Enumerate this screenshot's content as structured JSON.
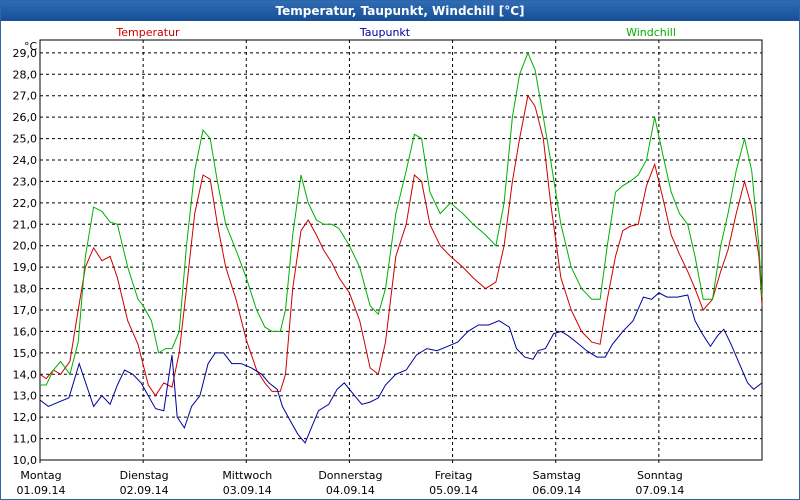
{
  "window": {
    "title": "Temperatur, Taupunkt, Windchill [°C]"
  },
  "chart_data": {
    "type": "line",
    "title": "Temperatur, Taupunkt, Windchill [°C]",
    "ylabel": "°C",
    "ylim": [
      10.0,
      29.6
    ],
    "yticks": [
      "10,0",
      "11,0",
      "12,0",
      "13,0",
      "14,0",
      "15,0",
      "16,0",
      "17,0",
      "18,0",
      "19,0",
      "20,0",
      "21,0",
      "22,0",
      "23,0",
      "24,0",
      "25,0",
      "26,0",
      "27,0",
      "28,0",
      "29,0"
    ],
    "grid": true,
    "xlim": [
      0,
      7
    ],
    "days": [
      {
        "weekday": "Montag",
        "date": "01.09.14"
      },
      {
        "weekday": "Dienstag",
        "date": "02.09.14"
      },
      {
        "weekday": "Mittwoch",
        "date": "03.09.14"
      },
      {
        "weekday": "Donnerstag",
        "date": "04.09.14"
      },
      {
        "weekday": "Freitag",
        "date": "05.09.14"
      },
      {
        "weekday": "Samstag",
        "date": "06.09.14"
      },
      {
        "weekday": "Sonntag",
        "date": "07.09.14"
      }
    ],
    "series": [
      {
        "name": "Temperatur",
        "color": "#cc0000",
        "points": [
          [
            0.0,
            14.0
          ],
          [
            0.06,
            13.8
          ],
          [
            0.13,
            14.2
          ],
          [
            0.2,
            14.0
          ],
          [
            0.29,
            14.6
          ],
          [
            0.37,
            17.0
          ],
          [
            0.44,
            19.0
          ],
          [
            0.52,
            19.9
          ],
          [
            0.6,
            19.3
          ],
          [
            0.68,
            19.5
          ],
          [
            0.75,
            18.5
          ],
          [
            0.85,
            16.5
          ],
          [
            0.95,
            15.4
          ],
          [
            1.05,
            13.5
          ],
          [
            1.12,
            13.0
          ],
          [
            1.2,
            13.6
          ],
          [
            1.28,
            13.4
          ],
          [
            1.35,
            15.0
          ],
          [
            1.42,
            18.0
          ],
          [
            1.5,
            21.5
          ],
          [
            1.58,
            23.3
          ],
          [
            1.65,
            23.1
          ],
          [
            1.72,
            21.0
          ],
          [
            1.8,
            19.0
          ],
          [
            1.9,
            17.5
          ],
          [
            2.0,
            15.6
          ],
          [
            2.1,
            14.2
          ],
          [
            2.18,
            13.6
          ],
          [
            2.25,
            13.2
          ],
          [
            2.33,
            13.2
          ],
          [
            2.38,
            14.0
          ],
          [
            2.45,
            18.0
          ],
          [
            2.53,
            20.7
          ],
          [
            2.6,
            21.2
          ],
          [
            2.68,
            20.5
          ],
          [
            2.75,
            19.8
          ],
          [
            2.83,
            19.2
          ],
          [
            2.9,
            18.5
          ],
          [
            3.0,
            17.8
          ],
          [
            3.1,
            16.5
          ],
          [
            3.2,
            14.3
          ],
          [
            3.28,
            14.0
          ],
          [
            3.35,
            15.5
          ],
          [
            3.45,
            19.5
          ],
          [
            3.55,
            21.0
          ],
          [
            3.63,
            23.3
          ],
          [
            3.7,
            23.0
          ],
          [
            3.78,
            21.0
          ],
          [
            3.88,
            20.0
          ],
          [
            3.98,
            19.5
          ],
          [
            4.1,
            19.0
          ],
          [
            4.2,
            18.5
          ],
          [
            4.32,
            18.0
          ],
          [
            4.42,
            18.3
          ],
          [
            4.5,
            20.0
          ],
          [
            4.58,
            23.0
          ],
          [
            4.65,
            25.0
          ],
          [
            4.73,
            27.0
          ],
          [
            4.8,
            26.5
          ],
          [
            4.88,
            25.0
          ],
          [
            4.95,
            22.0
          ],
          [
            5.05,
            18.5
          ],
          [
            5.15,
            17.0
          ],
          [
            5.25,
            16.0
          ],
          [
            5.35,
            15.5
          ],
          [
            5.43,
            15.4
          ],
          [
            5.5,
            17.5
          ],
          [
            5.58,
            19.5
          ],
          [
            5.65,
            20.7
          ],
          [
            5.72,
            20.9
          ],
          [
            5.8,
            21.0
          ],
          [
            5.88,
            22.8
          ],
          [
            5.96,
            23.8
          ],
          [
            6.05,
            22.0
          ],
          [
            6.12,
            20.5
          ],
          [
            6.2,
            19.6
          ],
          [
            6.28,
            18.8
          ],
          [
            6.35,
            18.0
          ],
          [
            6.43,
            17.0
          ],
          [
            6.52,
            17.5
          ],
          [
            6.6,
            18.8
          ],
          [
            6.67,
            19.8
          ],
          [
            6.75,
            21.5
          ],
          [
            6.83,
            23.0
          ],
          [
            6.9,
            21.8
          ],
          [
            6.97,
            19.5
          ],
          [
            7.0,
            17.2
          ]
        ]
      },
      {
        "name": "Taupunkt",
        "color": "#00009c",
        "points": [
          [
            0.0,
            12.8
          ],
          [
            0.08,
            12.5
          ],
          [
            0.18,
            12.7
          ],
          [
            0.28,
            12.9
          ],
          [
            0.38,
            14.5
          ],
          [
            0.45,
            13.5
          ],
          [
            0.52,
            12.5
          ],
          [
            0.6,
            13.0
          ],
          [
            0.68,
            12.6
          ],
          [
            0.75,
            13.5
          ],
          [
            0.82,
            14.2
          ],
          [
            0.9,
            14.0
          ],
          [
            0.98,
            13.6
          ],
          [
            1.05,
            13.0
          ],
          [
            1.12,
            12.4
          ],
          [
            1.2,
            12.3
          ],
          [
            1.28,
            14.9
          ],
          [
            1.33,
            12.0
          ],
          [
            1.4,
            11.5
          ],
          [
            1.47,
            12.5
          ],
          [
            1.55,
            13.0
          ],
          [
            1.63,
            14.5
          ],
          [
            1.7,
            15.0
          ],
          [
            1.78,
            15.0
          ],
          [
            1.86,
            14.5
          ],
          [
            1.95,
            14.5
          ],
          [
            2.05,
            14.3
          ],
          [
            2.15,
            14.0
          ],
          [
            2.22,
            13.6
          ],
          [
            2.3,
            13.3
          ],
          [
            2.35,
            12.5
          ],
          [
            2.43,
            11.8
          ],
          [
            2.5,
            11.2
          ],
          [
            2.57,
            10.8
          ],
          [
            2.63,
            11.5
          ],
          [
            2.7,
            12.3
          ],
          [
            2.8,
            12.6
          ],
          [
            2.88,
            13.3
          ],
          [
            2.95,
            13.6
          ],
          [
            3.05,
            13.0
          ],
          [
            3.12,
            12.6
          ],
          [
            3.2,
            12.7
          ],
          [
            3.28,
            12.9
          ],
          [
            3.35,
            13.5
          ],
          [
            3.45,
            14.0
          ],
          [
            3.55,
            14.2
          ],
          [
            3.65,
            14.9
          ],
          [
            3.75,
            15.2
          ],
          [
            3.85,
            15.1
          ],
          [
            3.95,
            15.3
          ],
          [
            4.05,
            15.5
          ],
          [
            4.15,
            16.0
          ],
          [
            4.25,
            16.3
          ],
          [
            4.35,
            16.3
          ],
          [
            4.45,
            16.5
          ],
          [
            4.55,
            16.2
          ],
          [
            4.62,
            15.2
          ],
          [
            4.7,
            14.8
          ],
          [
            4.78,
            14.7
          ],
          [
            4.83,
            15.1
          ],
          [
            4.9,
            15.2
          ],
          [
            4.98,
            15.9
          ],
          [
            5.05,
            16.0
          ],
          [
            5.12,
            15.8
          ],
          [
            5.2,
            15.5
          ],
          [
            5.3,
            15.1
          ],
          [
            5.4,
            14.8
          ],
          [
            5.48,
            14.8
          ],
          [
            5.55,
            15.4
          ],
          [
            5.65,
            16.0
          ],
          [
            5.75,
            16.5
          ],
          [
            5.85,
            17.6
          ],
          [
            5.93,
            17.5
          ],
          [
            6.0,
            17.8
          ],
          [
            6.08,
            17.6
          ],
          [
            6.18,
            17.6
          ],
          [
            6.28,
            17.7
          ],
          [
            6.35,
            16.5
          ],
          [
            6.42,
            15.9
          ],
          [
            6.5,
            15.3
          ],
          [
            6.57,
            15.8
          ],
          [
            6.63,
            16.1
          ],
          [
            6.7,
            15.4
          ],
          [
            6.78,
            14.5
          ],
          [
            6.86,
            13.6
          ],
          [
            6.92,
            13.3
          ],
          [
            7.0,
            13.6
          ]
        ]
      },
      {
        "name": "Windchill",
        "color": "#00b000",
        "points": [
          [
            0.0,
            13.5
          ],
          [
            0.06,
            13.5
          ],
          [
            0.13,
            14.2
          ],
          [
            0.2,
            14.6
          ],
          [
            0.29,
            14.0
          ],
          [
            0.37,
            15.5
          ],
          [
            0.44,
            19.5
          ],
          [
            0.52,
            21.8
          ],
          [
            0.6,
            21.6
          ],
          [
            0.68,
            21.1
          ],
          [
            0.75,
            21.0
          ],
          [
            0.85,
            19.0
          ],
          [
            0.95,
            17.5
          ],
          [
            1.0,
            17.2
          ],
          [
            1.08,
            16.5
          ],
          [
            1.15,
            15.0
          ],
          [
            1.22,
            15.2
          ],
          [
            1.28,
            15.2
          ],
          [
            1.35,
            16.0
          ],
          [
            1.42,
            20.0
          ],
          [
            1.5,
            23.5
          ],
          [
            1.58,
            25.4
          ],
          [
            1.65,
            25.0
          ],
          [
            1.72,
            23.0
          ],
          [
            1.8,
            21.0
          ],
          [
            1.9,
            19.8
          ],
          [
            2.0,
            18.5
          ],
          [
            2.1,
            17.0
          ],
          [
            2.18,
            16.2
          ],
          [
            2.25,
            16.0
          ],
          [
            2.33,
            16.0
          ],
          [
            2.38,
            17.0
          ],
          [
            2.45,
            20.5
          ],
          [
            2.53,
            23.3
          ],
          [
            2.6,
            22.0
          ],
          [
            2.68,
            21.2
          ],
          [
            2.75,
            21.0
          ],
          [
            2.83,
            21.0
          ],
          [
            2.9,
            20.8
          ],
          [
            3.0,
            20.0
          ],
          [
            3.1,
            19.0
          ],
          [
            3.2,
            17.2
          ],
          [
            3.28,
            16.8
          ],
          [
            3.35,
            18.0
          ],
          [
            3.45,
            21.5
          ],
          [
            3.55,
            23.5
          ],
          [
            3.63,
            25.2
          ],
          [
            3.7,
            25.0
          ],
          [
            3.78,
            22.5
          ],
          [
            3.88,
            21.5
          ],
          [
            3.98,
            22.0
          ],
          [
            4.1,
            21.5
          ],
          [
            4.2,
            21.0
          ],
          [
            4.32,
            20.5
          ],
          [
            4.42,
            20.0
          ],
          [
            4.5,
            22.0
          ],
          [
            4.58,
            26.0
          ],
          [
            4.65,
            28.0
          ],
          [
            4.73,
            29.0
          ],
          [
            4.8,
            28.2
          ],
          [
            4.88,
            26.0
          ],
          [
            4.95,
            24.0
          ],
          [
            5.05,
            21.0
          ],
          [
            5.15,
            19.0
          ],
          [
            5.25,
            18.0
          ],
          [
            5.35,
            17.5
          ],
          [
            5.43,
            17.5
          ],
          [
            5.5,
            20.0
          ],
          [
            5.58,
            22.5
          ],
          [
            5.65,
            22.8
          ],
          [
            5.72,
            23.0
          ],
          [
            5.8,
            23.3
          ],
          [
            5.88,
            24.0
          ],
          [
            5.96,
            26.0
          ],
          [
            6.05,
            24.0
          ],
          [
            6.12,
            22.5
          ],
          [
            6.2,
            21.5
          ],
          [
            6.28,
            21.0
          ],
          [
            6.35,
            19.5
          ],
          [
            6.43,
            17.5
          ],
          [
            6.52,
            17.5
          ],
          [
            6.6,
            20.0
          ],
          [
            6.67,
            21.5
          ],
          [
            6.75,
            23.5
          ],
          [
            6.83,
            25.0
          ],
          [
            6.9,
            23.5
          ],
          [
            6.97,
            20.0
          ],
          [
            7.0,
            17.6
          ]
        ]
      }
    ]
  }
}
